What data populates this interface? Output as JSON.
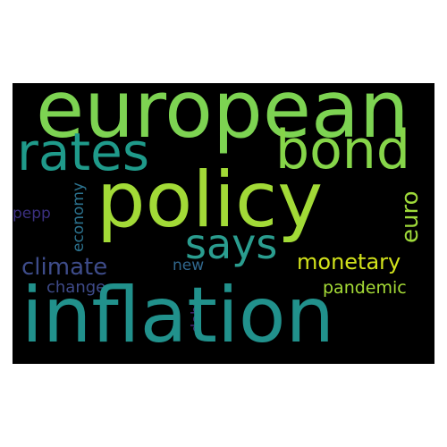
{
  "wordcloud": {
    "background": "#000000",
    "words": {
      "european": {
        "text": "european",
        "color": "#7dd352"
      },
      "rates": {
        "text": "rates",
        "color": "#1f9a8a"
      },
      "bond": {
        "text": "bond",
        "color": "#86d549"
      },
      "policy": {
        "text": "policy",
        "color": "#a2da37"
      },
      "says": {
        "text": "says",
        "color": "#2a9d8f"
      },
      "monetary": {
        "text": "monetary",
        "color": "#d2e21b"
      },
      "climate": {
        "text": "climate",
        "color": "#3e4c8a"
      },
      "change": {
        "text": "change",
        "color": "#3e4a89"
      },
      "pepp": {
        "text": "pepp",
        "color": "#3b2f80"
      },
      "economy": {
        "text": "economy",
        "color": "#2c728e"
      },
      "new": {
        "text": "new",
        "color": "#31688e"
      },
      "debt": {
        "text": "debt",
        "color": "#482878"
      },
      "euro": {
        "text": "euro",
        "color": "#9fda3a"
      },
      "pandemic": {
        "text": "pandemic",
        "color": "#a5db36"
      },
      "inflation": {
        "text": "inflation",
        "color": "#21918c"
      }
    }
  }
}
